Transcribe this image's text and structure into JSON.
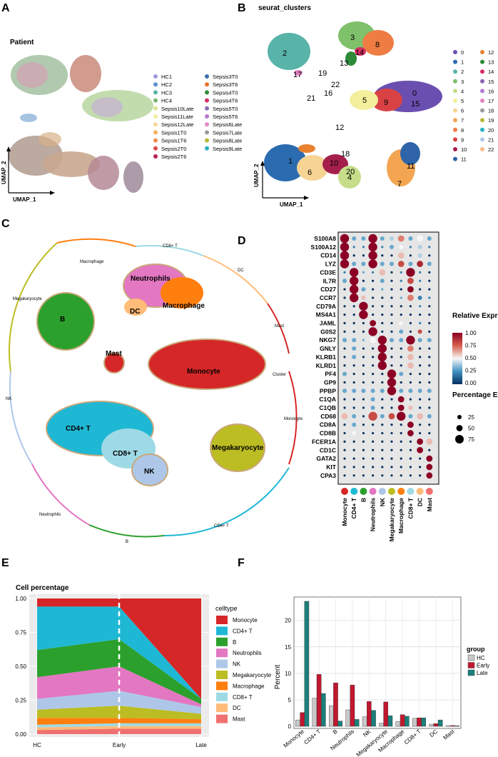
{
  "panels": {
    "A": "A",
    "B": "B",
    "C": "C",
    "D": "D",
    "E": "E",
    "F": "F"
  },
  "panelA": {
    "title": "Patient",
    "xlabel": "UMAP_1",
    "ylabel": "UMAP_2",
    "legend": [
      {
        "label": "HC1",
        "color": "#9c9be0"
      },
      {
        "label": "HC2",
        "color": "#5a8fc9"
      },
      {
        "label": "HC3",
        "color": "#56b4a6"
      },
      {
        "label": "HC4",
        "color": "#78b96e"
      },
      {
        "label": "Sepsis10Late",
        "color": "#dbe58f"
      },
      {
        "label": "Sepsis11Late",
        "color": "#f3ee9b"
      },
      {
        "label": "Sepsis12Late",
        "color": "#f6d99a"
      },
      {
        "label": "Sepsis1T0",
        "color": "#f4b25d"
      },
      {
        "label": "Sepsis1T6",
        "color": "#f08a4d"
      },
      {
        "label": "Sepsis2T0",
        "color": "#dc4a4a"
      },
      {
        "label": "Sepsis2T6",
        "color": "#b7214e"
      },
      {
        "label": "Sepsis3T0",
        "color": "#3f6fb0"
      },
      {
        "label": "Sepsis3T6",
        "color": "#e4742d"
      },
      {
        "label": "Sepsis4T0",
        "color": "#2e8b3a"
      },
      {
        "label": "Sepsis4T6",
        "color": "#d6326a"
      },
      {
        "label": "Sepsis5T0",
        "color": "#8e6bb8"
      },
      {
        "label": "Sepsis5T6",
        "color": "#b17ad0"
      },
      {
        "label": "Sepsis6Late",
        "color": "#e58ac6"
      },
      {
        "label": "Sepsis7Late",
        "color": "#9a9a9a"
      },
      {
        "label": "Sepsis8Late",
        "color": "#b8b83a"
      },
      {
        "label": "Sepsis9Late",
        "color": "#2bb3c0"
      }
    ]
  },
  "panelB": {
    "title": "seurat_clusters",
    "xlabel": "UMAP_1",
    "ylabel": "UMAP_2",
    "legend": [
      {
        "label": "0",
        "color": "#6a4fb1"
      },
      {
        "label": "1",
        "color": "#2b6cb0"
      },
      {
        "label": "2",
        "color": "#58b3a8"
      },
      {
        "label": "3",
        "color": "#7fc06b"
      },
      {
        "label": "4",
        "color": "#c6de8a"
      },
      {
        "label": "5",
        "color": "#f3ef9c"
      },
      {
        "label": "6",
        "color": "#f6d494"
      },
      {
        "label": "7",
        "color": "#f3a552"
      },
      {
        "label": "8",
        "color": "#ee7c43"
      },
      {
        "label": "9",
        "color": "#d94245"
      },
      {
        "label": "10",
        "color": "#a51f4c"
      },
      {
        "label": "11",
        "color": "#2f64a8"
      },
      {
        "label": "12",
        "color": "#e98130"
      },
      {
        "label": "13",
        "color": "#2c8a39"
      },
      {
        "label": "14",
        "color": "#d72d63"
      },
      {
        "label": "15",
        "color": "#8c62b6"
      },
      {
        "label": "16",
        "color": "#b37ad3"
      },
      {
        "label": "17",
        "color": "#e383c4"
      },
      {
        "label": "18",
        "color": "#9b9b9b"
      },
      {
        "label": "19",
        "color": "#b9b93a"
      },
      {
        "label": "20",
        "color": "#2cb3c2"
      },
      {
        "label": "21",
        "color": "#aec7e8"
      },
      {
        "label": "22",
        "color": "#f7b98a"
      }
    ],
    "cluster_labels": [
      "0",
      "1",
      "2",
      "3",
      "4",
      "5",
      "6",
      "7",
      "8",
      "9",
      "10",
      "11",
      "12",
      "13",
      "14",
      "15",
      "16",
      "17",
      "18",
      "19",
      "20",
      "21",
      "22"
    ]
  },
  "panelC": {
    "labels": [
      "Neutrophils",
      "Macrophage",
      "B",
      "DC",
      "Mast",
      "Monocyte",
      "CD4+ T",
      "CD8+ T",
      "NK",
      "Megakaryocyte"
    ],
    "ring_labels": [
      "CD8+ T",
      "DC",
      "Mast",
      "Cluster",
      "Monocyte",
      "CD4+ T",
      "B",
      "Neutrophils",
      "NK",
      "Megakaryocyte",
      "Macrophage"
    ]
  },
  "panelD": {
    "legend_title": "Relative Expression",
    "legend_ticks": [
      "1.00",
      "0.75",
      "0.50",
      "0.25",
      "0.00"
    ],
    "size_title": "Percentage Expressed",
    "size_ticks": [
      "25",
      "50",
      "75"
    ],
    "genes": [
      "S100A8",
      "S100A12",
      "CD14",
      "LYZ",
      "CD3E",
      "IL7R",
      "CD27",
      "CCR7",
      "CD79A",
      "MS4A1",
      "JAML",
      "G0S2",
      "NKG7",
      "GNLY",
      "KLRB1",
      "KLRD1",
      "PF4",
      "GP9",
      "PPBP",
      "C1QA",
      "C1QB",
      "CD68",
      "CD8A",
      "CD8B",
      "FCER1A",
      "CD1C",
      "GATA2",
      "KIT",
      "CPA3"
    ],
    "celltypes": [
      "Monocyte",
      "CD4+ T",
      "B",
      "Neutrophils",
      "NK",
      "Megakaryocyte",
      "Macrophage",
      "CD8+ T",
      "DC",
      "Mast"
    ],
    "celltype_colors": [
      "#d62728",
      "#1fb8d4",
      "#2ca02c",
      "#e377c2",
      "#aec7e8",
      "#bcbd22",
      "#ff7f0e",
      "#9edae5",
      "#ffbb78",
      "#f07070"
    ]
  },
  "chart_data": [
    {
      "type": "area",
      "title": "Cell percentage",
      "categories": [
        "HC",
        "Early",
        "Late"
      ],
      "yticks": [
        "0.00",
        "0.25",
        "0.50",
        "0.75",
        "1.00"
      ],
      "ylim": [
        0,
        1
      ],
      "legend_title": "celltype",
      "stack_order_bottom_to_top": [
        "Mast",
        "DC",
        "CD8+ T",
        "Macrophage",
        "Megakaryocyte",
        "NK",
        "Neutrophils",
        "B",
        "CD4+ T",
        "Monocyte"
      ],
      "series": [
        {
          "name": "Monocyte",
          "color": "#d62728",
          "values": [
            0.06,
            0.06,
            0.74
          ]
        },
        {
          "name": "CD4+ T",
          "color": "#1fb8d4",
          "values": [
            0.32,
            0.24,
            0.0
          ]
        },
        {
          "name": "B",
          "color": "#2ca02c",
          "values": [
            0.2,
            0.2,
            0.04
          ]
        },
        {
          "name": "Neutrophils",
          "color": "#e377c2",
          "values": [
            0.16,
            0.18,
            0.02
          ]
        },
        {
          "name": "NK",
          "color": "#aec7e8",
          "values": [
            0.08,
            0.11,
            0.05
          ]
        },
        {
          "name": "Megakaryocyte",
          "color": "#bcbd22",
          "values": [
            0.06,
            0.09,
            0.04
          ]
        },
        {
          "name": "Macrophage",
          "color": "#ff7f0e",
          "values": [
            0.05,
            0.04,
            0.03
          ]
        },
        {
          "name": "CD8+ T",
          "color": "#9edae5",
          "values": [
            0.02,
            0.02,
            0.02
          ]
        },
        {
          "name": "DC",
          "color": "#ffbb78",
          "values": [
            0.02,
            0.02,
            0.02
          ]
        },
        {
          "name": "Mast",
          "color": "#f07070",
          "values": [
            0.03,
            0.04,
            0.04
          ]
        }
      ]
    },
    {
      "type": "bar",
      "title": "",
      "ylabel": "Percent",
      "categories": [
        "Monocyte",
        "CD4+ T",
        "B",
        "Neutrophils",
        "NK",
        "Megakaryocyte",
        "Macrophage",
        "CD8+ T",
        "DC",
        "Mast"
      ],
      "yticks": [
        "0",
        "5",
        "10",
        "15",
        "20"
      ],
      "ylim": [
        0,
        24
      ],
      "legend_title": "group",
      "series": [
        {
          "name": "HC",
          "color": "#c8c8c8",
          "values": [
            1.2,
            5.3,
            3.9,
            3.1,
            1.8,
            0.6,
            0.9,
            1.5,
            0.4,
            0.1
          ]
        },
        {
          "name": "Early",
          "color": "#c0182f",
          "values": [
            2.6,
            9.8,
            8.2,
            7.8,
            4.7,
            4.6,
            2.2,
            1.6,
            0.5,
            0.15
          ]
        },
        {
          "name": "Late",
          "color": "#1b7f7a",
          "values": [
            23.6,
            6.2,
            1.0,
            1.3,
            3.0,
            2.0,
            1.9,
            1.6,
            1.2,
            0.1
          ]
        }
      ]
    }
  ]
}
